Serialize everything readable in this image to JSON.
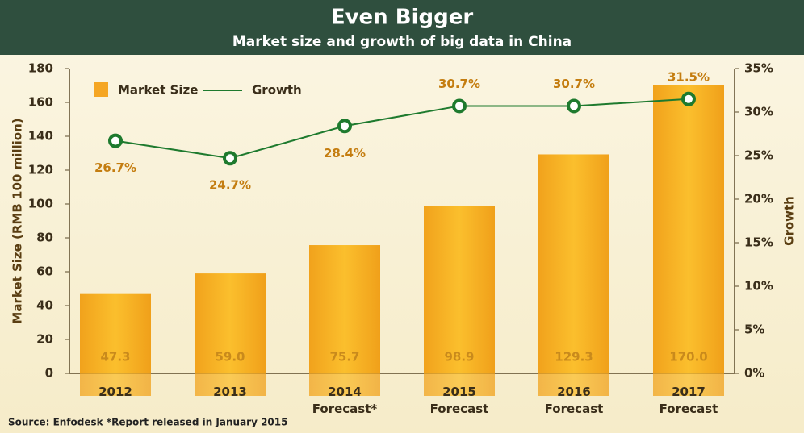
{
  "chart_data": {
    "type": "bar",
    "title": "Even Bigger",
    "subtitle": "Market size and growth of big data in China",
    "categories": [
      "2012",
      "2013",
      "2014\nForecast*",
      "2015\nForecast",
      "2016\nForecast",
      "2017\nForecast"
    ],
    "series": [
      {
        "name": "Market Size",
        "color": "#f5a623",
        "values": [
          47.3,
          59.0,
          75.7,
          98.9,
          129.3,
          170.0
        ],
        "value_labels": [
          "47.3",
          "59.0",
          "75.7",
          "98.9",
          "129.3",
          "170.0"
        ]
      },
      {
        "name": "Growth",
        "color": "#1e7a2e",
        "axis": "y2",
        "type": "line",
        "values": [
          26.7,
          24.7,
          28.4,
          30.7,
          30.7,
          31.5
        ],
        "value_labels": [
          "26.7%",
          "24.7%",
          "28.4%",
          "30.7%",
          "30.7%",
          "31.5%"
        ]
      }
    ],
    "ylabel": "Market Size (RMB 100 million)",
    "y2label": "Growth",
    "ylim": [
      0,
      180
    ],
    "yticks": [
      0,
      20,
      40,
      60,
      80,
      100,
      120,
      140,
      160,
      180
    ],
    "y2lim": [
      0,
      35
    ],
    "y2ticks": [
      {
        "value": 0,
        "label": "0%"
      },
      {
        "value": 5,
        "label": "5%"
      },
      {
        "value": 10,
        "label": "10%"
      },
      {
        "value": 15,
        "label": "15%"
      },
      {
        "value": 20,
        "label": "20%"
      },
      {
        "value": 25,
        "label": "25%"
      },
      {
        "value": 30,
        "label": "30%"
      },
      {
        "value": 35,
        "label": "35%"
      }
    ],
    "legend": "upper left",
    "source": "Source: Enfodesk  *Report released in January 2015"
  }
}
